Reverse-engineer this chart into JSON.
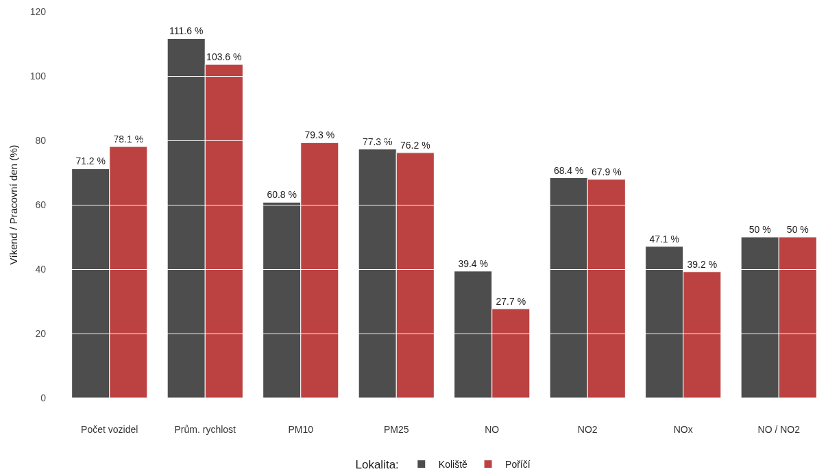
{
  "chart_data": {
    "type": "bar",
    "ylabel": "Víkend / Pracovní den (%)",
    "legend_title": "Lokalita:",
    "categories": [
      "Počet vozidel",
      "Prům. rychlost",
      "PM10",
      "PM25",
      "NO",
      "NO2",
      "NOx",
      "NO / NO2"
    ],
    "series": [
      {
        "name": "Koliště",
        "color": "#4d4d4d",
        "values": [
          71.2,
          111.6,
          60.8,
          77.3,
          39.4,
          68.4,
          47.1,
          50
        ],
        "value_labels": [
          "71.2 %",
          "111.6 %",
          "60.8 %",
          "77.3 %",
          "39.4 %",
          "68.4 %",
          "47.1 %",
          "50 %"
        ]
      },
      {
        "name": "Poříčí",
        "color": "#bc4242",
        "values": [
          78.1,
          103.6,
          79.3,
          76.2,
          27.7,
          67.9,
          39.2,
          50
        ],
        "value_labels": [
          "78.1 %",
          "103.6 %",
          "79.3 %",
          "76.2 %",
          "27.7 %",
          "67.9 %",
          "39.2 %",
          "50 %"
        ]
      }
    ],
    "ylim": [
      0,
      120
    ],
    "yticks": [
      0,
      20,
      40,
      60,
      80,
      100,
      120
    ],
    "grid": "y",
    "legend": "bottom"
  }
}
